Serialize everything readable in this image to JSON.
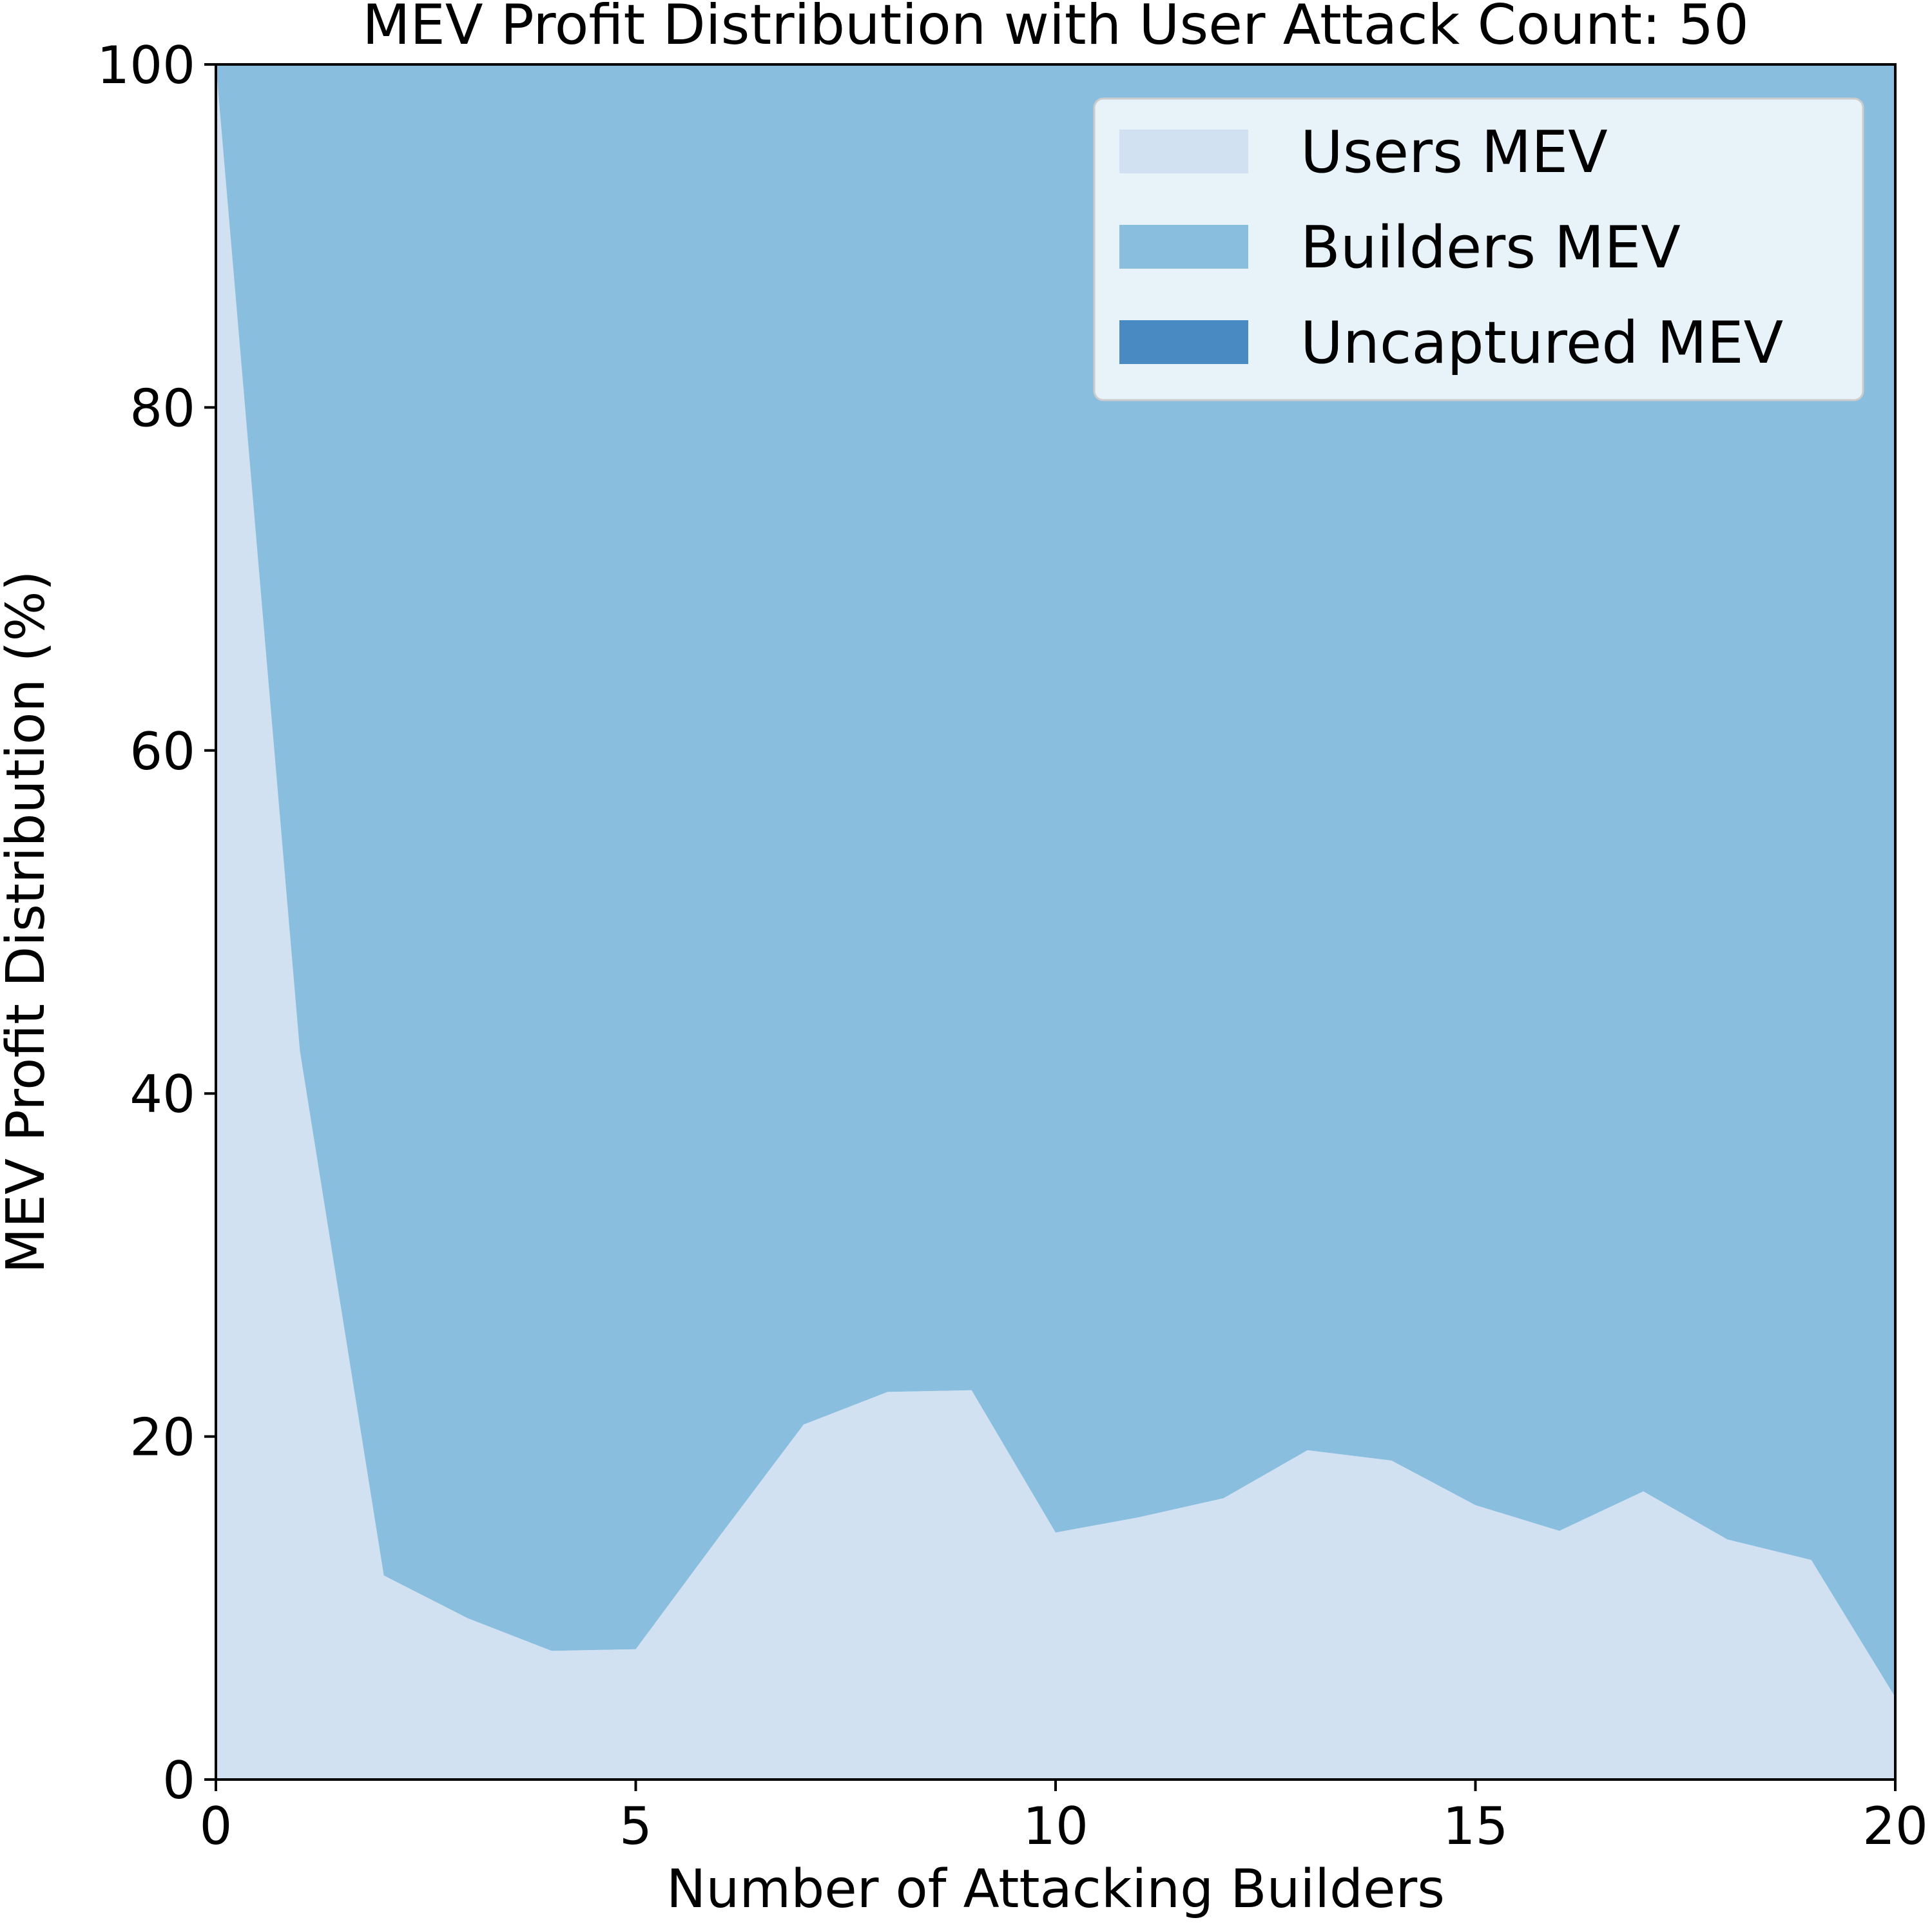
{
  "chart_data": {
    "type": "area",
    "stacked": true,
    "title": "MEV Profit Distribution with User Attack Count: 50",
    "xlabel": "Number of Attacking Builders",
    "ylabel": "MEV Profit Distribution (%)",
    "xlim": [
      0,
      20
    ],
    "ylim": [
      0,
      100
    ],
    "xticks": [
      "0",
      "5",
      "10",
      "15",
      "20"
    ],
    "yticks": [
      "0",
      "20",
      "40",
      "60",
      "80",
      "100"
    ],
    "grid": false,
    "legend": "top-right",
    "x": [
      0,
      1,
      2,
      3,
      4,
      5,
      6,
      7,
      8,
      9,
      10,
      11,
      12,
      13,
      14,
      15,
      16,
      17,
      18,
      19,
      20
    ],
    "series": [
      {
        "name": "Users MEV",
        "color": "#d1e1f2",
        "values": [
          100,
          42.5,
          11.9,
          9.4,
          7.5,
          7.6,
          14.2,
          20.7,
          22.6,
          22.7,
          14.4,
          15.3,
          16.4,
          19.2,
          18.6,
          16.0,
          14.5,
          16.8,
          14.0,
          12.8,
          4.8
        ]
      },
      {
        "name": "Builders MEV",
        "color": "#8abede",
        "values": [
          0,
          57.5,
          88.1,
          90.6,
          92.5,
          92.4,
          85.8,
          79.3,
          77.4,
          77.3,
          85.6,
          84.7,
          83.6,
          80.8,
          81.4,
          84.0,
          85.5,
          83.2,
          86.0,
          87.2,
          95.2
        ]
      },
      {
        "name": "Uncaptured MEV",
        "color": "#4a8ac3",
        "values": [
          0,
          0,
          0,
          0,
          0,
          0,
          0,
          0,
          0,
          0,
          0,
          0,
          0,
          0,
          0,
          0,
          0,
          0,
          0,
          0,
          0
        ]
      }
    ]
  }
}
